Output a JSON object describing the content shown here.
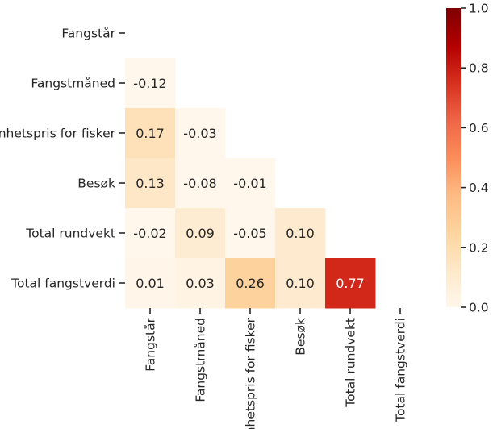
{
  "chart_data": {
    "type": "heatmap",
    "title": "",
    "xlabel": "",
    "ylabel": "",
    "labels": [
      "Fangstår",
      "Fangstmåned",
      "Enhetspris for fisker",
      "Besøk",
      "Total rundvekt",
      "Total fangstverdi"
    ],
    "mask": "upper-triangle-including-diagonal",
    "matrix": [
      [
        null,
        null,
        null,
        null,
        null,
        null
      ],
      [
        -0.12,
        null,
        null,
        null,
        null,
        null
      ],
      [
        0.17,
        -0.03,
        null,
        null,
        null,
        null
      ],
      [
        0.13,
        -0.08,
        -0.01,
        null,
        null,
        null
      ],
      [
        -0.02,
        0.09,
        -0.05,
        0.1,
        null,
        null
      ],
      [
        0.01,
        0.03,
        0.26,
        0.1,
        0.77,
        null
      ]
    ],
    "value_labels": [
      [
        "",
        "",
        "",
        "",
        "",
        ""
      ],
      [
        "-0.12",
        "",
        "",
        "",
        "",
        ""
      ],
      [
        "0.17",
        "-0.03",
        "",
        "",
        "",
        ""
      ],
      [
        "0.13",
        "-0.08",
        "-0.01",
        "",
        "",
        ""
      ],
      [
        "-0.02",
        "0.09",
        "-0.05",
        "0.10",
        "",
        ""
      ],
      [
        "0.01",
        "0.03",
        "0.26",
        "0.10",
        "0.77",
        ""
      ]
    ],
    "colormap": "OrRd",
    "vmin": 0.0,
    "vmax": 1.0,
    "colorbar": {
      "ticks": [
        0.0,
        0.2,
        0.4,
        0.6,
        0.8,
        1.0
      ],
      "tick_labels": [
        "0.0",
        "0.2",
        "0.4",
        "0.6",
        "0.8",
        "1.0"
      ]
    },
    "grid": false
  }
}
